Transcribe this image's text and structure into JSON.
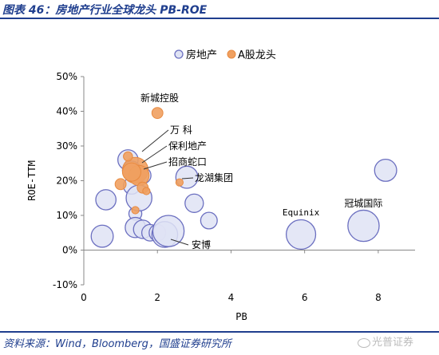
{
  "header": {
    "title": "图表 46：房地产行业全球龙头 PB-ROE"
  },
  "footer": {
    "source": "资料来源：Wind，Bloomberg，国盛证券研究所",
    "watermark": "光普证券"
  },
  "chart_data": {
    "type": "scatter",
    "xlabel": "PB",
    "ylabel": "ROE-TTM",
    "xlim": [
      0,
      9
    ],
    "ylim": [
      -10,
      50
    ],
    "x_ticks": [
      "0",
      "2",
      "4",
      "6",
      "8"
    ],
    "y_ticks": [
      "-10%",
      "0%",
      "10%",
      "20%",
      "30%",
      "40%",
      "50%"
    ],
    "grid": false,
    "legend_position": "top",
    "series": [
      {
        "name": "房地产",
        "color": "#dfe3f4",
        "stroke": "#6b6fc0",
        "points": [
          {
            "x": 0.5,
            "y": 4,
            "size": 0.6
          },
          {
            "x": 0.6,
            "y": 14.5,
            "size": 0.55
          },
          {
            "x": 1.2,
            "y": 26,
            "size": 0.55
          },
          {
            "x": 1.3,
            "y": 23,
            "size": 0.5
          },
          {
            "x": 1.3,
            "y": 18.5,
            "size": 0.45
          },
          {
            "x": 1.4,
            "y": 10.5,
            "size": 0.35
          },
          {
            "x": 1.5,
            "y": 15,
            "size": 0.7
          },
          {
            "x": 1.4,
            "y": 6.5,
            "size": 0.55
          },
          {
            "x": 1.6,
            "y": 21.5,
            "size": 0.45
          },
          {
            "x": 1.6,
            "y": 6,
            "size": 0.5
          },
          {
            "x": 1.8,
            "y": 5,
            "size": 0.45
          },
          {
            "x": 2.0,
            "y": 5,
            "size": 0.45
          },
          {
            "x": 2.2,
            "y": 4.5,
            "size": 0.7
          },
          {
            "x": 2.3,
            "y": 5.5,
            "size": 0.85
          },
          {
            "x": 2.8,
            "y": 21,
            "size": 0.6
          },
          {
            "x": 3.0,
            "y": 13.5,
            "size": 0.5
          },
          {
            "x": 3.4,
            "y": 8.5,
            "size": 0.45
          },
          {
            "x": 5.9,
            "y": 4.5,
            "size": 0.8,
            "label": "Equinix"
          },
          {
            "x": 7.6,
            "y": 7,
            "size": 0.85,
            "label": "冠城国际"
          },
          {
            "x": 8.2,
            "y": 23,
            "size": 0.6
          }
        ]
      },
      {
        "name": "A股龙头",
        "color": "#f0a060",
        "points": [
          {
            "x": 2.0,
            "y": 39.5,
            "size": 0.3,
            "label": "新城控股"
          },
          {
            "x": 1.4,
            "y": 23,
            "size": 0.7,
            "label": "万  科"
          },
          {
            "x": 1.5,
            "y": 21.5,
            "size": 0.55,
            "label": "保利地产"
          },
          {
            "x": 1.3,
            "y": 22.5,
            "size": 0.5,
            "label": "招商蛇口"
          },
          {
            "x": 1.2,
            "y": 27,
            "size": 0.25
          },
          {
            "x": 1.6,
            "y": 18,
            "size": 0.3
          },
          {
            "x": 1.0,
            "y": 19,
            "size": 0.3
          },
          {
            "x": 2.6,
            "y": 19.5,
            "size": 0.2,
            "label": "龙湖集团"
          },
          {
            "x": 1.4,
            "y": 11.5,
            "size": 0.2
          },
          {
            "x": 1.7,
            "y": 17,
            "size": 0.2
          }
        ]
      }
    ],
    "annotations": [
      {
        "text": "安博",
        "x": 2.3,
        "y": 0.8
      }
    ]
  }
}
